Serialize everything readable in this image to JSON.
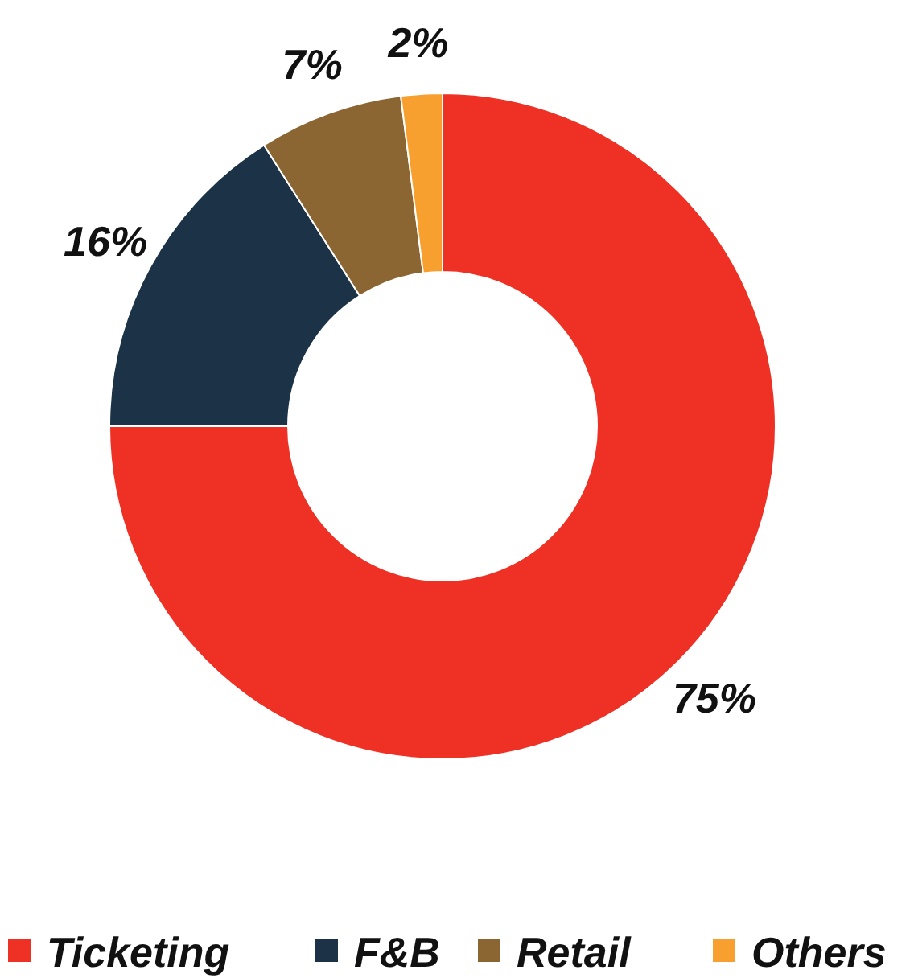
{
  "chart_data": {
    "type": "donut",
    "categories": [
      "Ticketing",
      "F&B",
      "Retail",
      "Others"
    ],
    "values": [
      75,
      16,
      7,
      2
    ],
    "colors": [
      "#ee3124",
      "#1c3347",
      "#8b6633",
      "#f7a030"
    ],
    "value_labels": [
      "75%",
      "16%",
      "7%",
      "2%"
    ],
    "legend": "bottom"
  }
}
